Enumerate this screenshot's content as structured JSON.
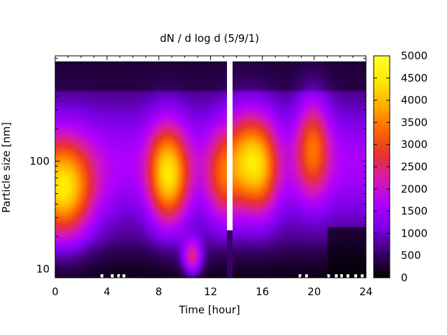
{
  "chart_data": {
    "type": "heatmap",
    "title": "dN / d log d (5/9/1)",
    "xlabel": "Time [hour]",
    "ylabel": "Particle size [nm]",
    "x_range": [
      0,
      24
    ],
    "x_ticks": [
      "0",
      "4",
      "8",
      "12",
      "16",
      "20",
      "24"
    ],
    "x_tick_values": [
      0,
      4,
      8,
      12,
      16,
      20,
      24
    ],
    "y_scale": "log",
    "y_range": [
      8.3,
      950
    ],
    "y_ticks": [
      "10",
      "100"
    ],
    "y_tick_values": [
      10,
      100
    ],
    "colorbar": {
      "range": [
        0,
        5000
      ],
      "ticks": [
        "0",
        "500",
        "1000",
        "1500",
        "2000",
        "2500",
        "3000",
        "3500",
        "4000",
        "4500",
        "5000"
      ],
      "tick_values": [
        0,
        500,
        1000,
        1500,
        2000,
        2500,
        3000,
        3500,
        4000,
        4500,
        5000
      ],
      "colormap": [
        "#000000",
        "#3a006a",
        "#7a00e6",
        "#b000ff",
        "#d81ab0",
        "#e8332e",
        "#ff6a00",
        "#ffb000",
        "#ffea00",
        "#ffff30"
      ]
    },
    "data_gap_hours": [
      13.3,
      13.6
    ],
    "features": [
      {
        "time_hour": 0.6,
        "size_nm": 55,
        "value": 4600
      },
      {
        "time_hour": 8.3,
        "size_nm": 80,
        "value": 3400
      },
      {
        "time_hour": 9.3,
        "size_nm": 75,
        "value": 3000
      },
      {
        "time_hour": 10.6,
        "size_nm": 13,
        "value": 3500
      },
      {
        "time_hour": 12.9,
        "size_nm": 75,
        "value": 3000
      },
      {
        "time_hour": 14.6,
        "size_nm": 110,
        "value": 3400
      },
      {
        "time_hour": 16.0,
        "size_nm": 95,
        "value": 3500
      },
      {
        "time_hour": 19.9,
        "size_nm": 150,
        "value": 3400
      }
    ],
    "grid": false,
    "legend": "none"
  }
}
